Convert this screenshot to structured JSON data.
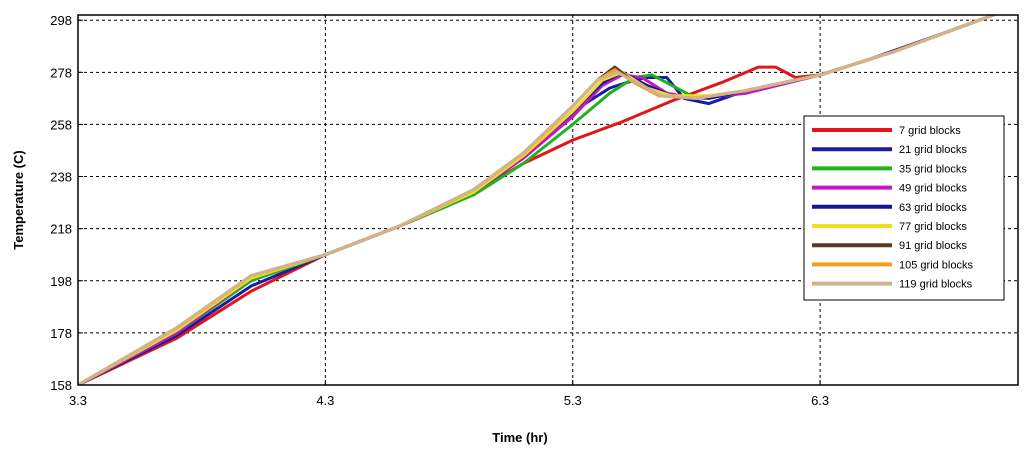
{
  "chart_data": {
    "type": "line",
    "title": "",
    "xlabel": "Time (hr)",
    "ylabel": "Temperature (C)",
    "xlim": [
      3.3,
      7.1
    ],
    "ylim": [
      158,
      300
    ],
    "xticks": [
      "3.3",
      "4.3",
      "5.3",
      "6.3"
    ],
    "yticks": [
      "158",
      "178",
      "198",
      "218",
      "238",
      "258",
      "278",
      "298"
    ],
    "grid": true,
    "legend_position": "right",
    "series": [
      {
        "name": "7 grid blocks",
        "color": "#e0161b",
        "x": [
          3.3,
          3.7,
          4.0,
          4.3,
          4.6,
          4.9,
          5.1,
          5.3,
          5.5,
          5.7,
          5.9,
          6.05,
          6.12,
          6.2,
          6.3,
          6.5,
          6.8,
          7.0
        ],
        "y": [
          158,
          176,
          194,
          208,
          219,
          232,
          243,
          252,
          259,
          267,
          274,
          280,
          280,
          276,
          277,
          283,
          293,
          300
        ]
      },
      {
        "name": "21 grid blocks",
        "color": "#1a1aa8",
        "x": [
          3.3,
          3.7,
          4.0,
          4.3,
          4.6,
          4.8,
          5.0,
          5.2,
          5.35,
          5.45,
          5.55,
          5.6,
          5.68,
          5.75,
          5.85,
          6.0,
          6.3,
          6.5,
          6.8,
          7.0
        ],
        "y": [
          158,
          177,
          196,
          208,
          219,
          227,
          238,
          254,
          266,
          272,
          275,
          276,
          276,
          268,
          266,
          271,
          277,
          283,
          293,
          300
        ]
      },
      {
        "name": "35 grid blocks",
        "color": "#1fb31f",
        "x": [
          3.3,
          3.7,
          4.0,
          4.3,
          4.6,
          4.9,
          5.1,
          5.3,
          5.45,
          5.55,
          5.62,
          5.68,
          5.8,
          6.0,
          6.3,
          6.6,
          7.0
        ],
        "y": [
          158,
          178,
          198,
          208,
          219,
          231,
          243,
          258,
          270,
          276,
          277,
          274,
          268,
          270,
          277,
          286,
          300
        ]
      },
      {
        "name": "49 grid blocks",
        "color": "#c814c8",
        "x": [
          3.3,
          3.7,
          4.0,
          4.3,
          4.6,
          4.9,
          5.1,
          5.3,
          5.42,
          5.5,
          5.58,
          5.68,
          5.8,
          6.0,
          6.3,
          6.6,
          7.0
        ],
        "y": [
          158,
          178,
          199,
          208,
          219,
          232,
          245,
          261,
          273,
          277,
          276,
          270,
          268,
          270,
          277,
          286,
          300
        ]
      },
      {
        "name": "63 grid blocks",
        "color": "#161690",
        "x": [
          3.3,
          3.7,
          4.0,
          4.3,
          4.6,
          4.9,
          5.1,
          5.3,
          5.42,
          5.5,
          5.6,
          5.7,
          5.85,
          6.0,
          6.3,
          6.6,
          7.0
        ],
        "y": [
          158,
          179,
          199,
          208,
          219,
          232,
          246,
          263,
          274,
          278,
          273,
          269,
          268,
          271,
          277,
          286,
          300
        ]
      },
      {
        "name": "77 grid blocks",
        "color": "#eedd22",
        "x": [
          3.3,
          3.7,
          4.0,
          4.3,
          4.6,
          4.9,
          5.1,
          5.3,
          5.42,
          5.5,
          5.6,
          5.7,
          5.85,
          6.0,
          6.3,
          6.6,
          7.0
        ],
        "y": [
          158,
          179,
          199,
          208,
          219,
          232,
          246,
          263,
          275,
          278,
          272,
          269,
          269,
          271,
          277,
          286,
          300
        ]
      },
      {
        "name": "91 grid blocks",
        "color": "#5a3a26",
        "x": [
          3.3,
          3.7,
          4.0,
          4.3,
          4.6,
          4.9,
          5.1,
          5.3,
          5.4,
          5.47,
          5.55,
          5.65,
          5.8,
          6.0,
          6.3,
          6.6,
          7.0
        ],
        "y": [
          158,
          180,
          200,
          208,
          219,
          233,
          247,
          265,
          275,
          280,
          274,
          269,
          268,
          271,
          277,
          286,
          300
        ]
      },
      {
        "name": "105 grid blocks",
        "color": "#f0a020",
        "x": [
          3.3,
          3.7,
          4.0,
          4.3,
          4.6,
          4.9,
          5.1,
          5.3,
          5.4,
          5.47,
          5.55,
          5.65,
          5.8,
          6.0,
          6.3,
          6.6,
          7.0
        ],
        "y": [
          158,
          180,
          200,
          208,
          219,
          233,
          247,
          265,
          275,
          279,
          274,
          269,
          268,
          271,
          277,
          286,
          300
        ]
      },
      {
        "name": "119 grid blocks",
        "color": "#d2b48c",
        "x": [
          3.3,
          3.7,
          4.0,
          4.3,
          4.6,
          4.9,
          5.1,
          5.3,
          5.4,
          5.48,
          5.56,
          5.66,
          5.8,
          6.0,
          6.3,
          6.6,
          7.0
        ],
        "y": [
          158,
          180,
          200,
          208,
          219,
          233,
          247,
          265,
          275,
          278,
          274,
          269,
          268,
          271,
          277,
          286,
          300
        ]
      }
    ]
  }
}
